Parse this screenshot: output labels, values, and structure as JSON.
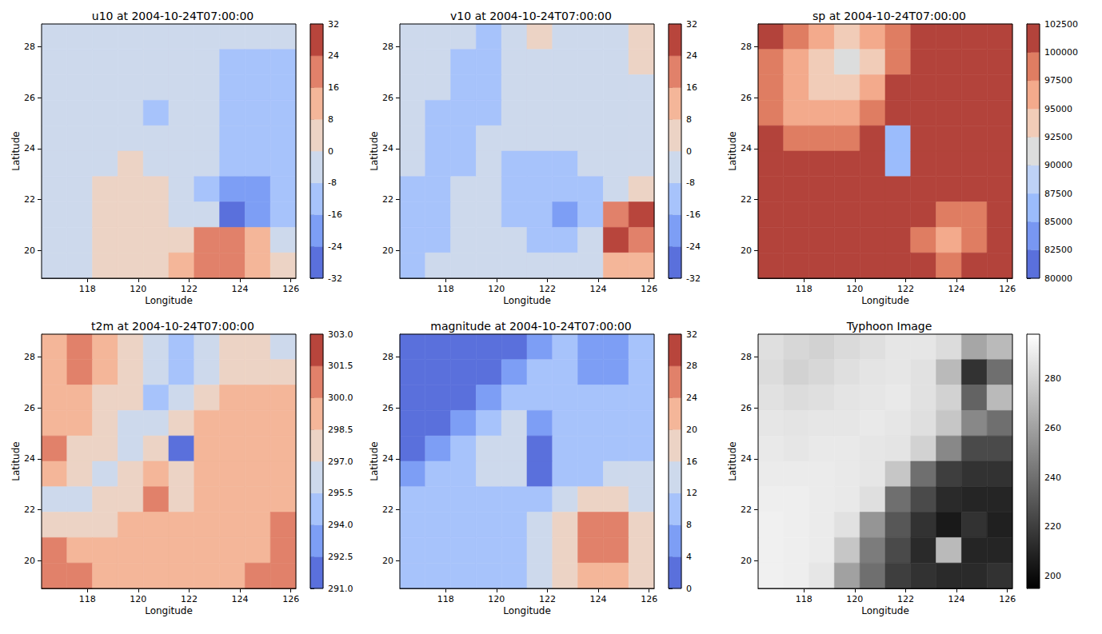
{
  "chart_data": [
    {
      "type": "contour",
      "title": "u10 at 2004-10-24T07:00:00",
      "x_label": "Longitude",
      "y_label": "Latitude",
      "xlim": [
        116.2,
        126.2
      ],
      "xticks": [
        118,
        120,
        122,
        124,
        126
      ],
      "ylim": [
        18.9,
        28.9
      ],
      "yticks": [
        20,
        22,
        24,
        26,
        28
      ],
      "lon": [
        116.7,
        117.7,
        118.7,
        119.7,
        120.7,
        121.7,
        122.7,
        123.7,
        124.7,
        125.7
      ],
      "lat": [
        28.4,
        27.4,
        26.4,
        25.4,
        24.4,
        23.4,
        22.4,
        21.4,
        20.4,
        19.4
      ],
      "values": [
        [
          -3,
          -2,
          -3,
          -4,
          -4,
          -4,
          -5,
          -6,
          -6,
          -5
        ],
        [
          -3,
          -3,
          -4,
          -4,
          -4,
          -5,
          -7,
          -9,
          -10,
          -9
        ],
        [
          -3,
          -4,
          -4,
          -5,
          -6,
          -6,
          -8,
          -10,
          -11,
          -10
        ],
        [
          -4,
          -4,
          -5,
          -6,
          -10,
          -6,
          -7,
          -10,
          -11,
          -10
        ],
        [
          -4,
          -4,
          -5,
          -5,
          -6,
          -7,
          -8,
          -10,
          -11,
          -10
        ],
        [
          -3,
          -3,
          -3,
          2,
          -2,
          -4,
          -8,
          -12,
          -14,
          -11
        ],
        [
          -2,
          -2,
          1,
          3,
          2,
          -3,
          -10,
          -18,
          -22,
          -14
        ],
        [
          -2,
          -1,
          2,
          3,
          3,
          -2,
          -8,
          -25,
          -20,
          -12
        ],
        [
          -2,
          -1,
          2,
          3,
          4,
          6,
          18,
          22,
          12,
          -3
        ],
        [
          -2,
          -1,
          2,
          2,
          3,
          8,
          16,
          20,
          12,
          2
        ]
      ],
      "colorbar": {
        "levels": [
          -32,
          -24,
          -16,
          -8,
          0,
          8,
          16,
          24,
          32
        ],
        "colors": [
          "#5a70dc",
          "#7d9ef5",
          "#a7c3fb",
          "#cdd9ec",
          "#ecd3c5",
          "#f4b699",
          "#e1816a",
          "#b8453c"
        ],
        "ticks": [
          -32,
          -24,
          -16,
          -8,
          0,
          8,
          16,
          24,
          32
        ]
      }
    },
    {
      "type": "contour",
      "title": "v10 at 2004-10-24T07:00:00",
      "x_label": "Longitude",
      "y_label": "Latitude",
      "xlim": [
        116.2,
        126.2
      ],
      "xticks": [
        118,
        120,
        122,
        124,
        126
      ],
      "ylim": [
        18.9,
        28.9
      ],
      "yticks": [
        20,
        22,
        24,
        26,
        28
      ],
      "lon": [
        116.7,
        117.7,
        118.7,
        119.7,
        120.7,
        121.7,
        122.7,
        123.7,
        124.7,
        125.7
      ],
      "lat": [
        28.4,
        27.4,
        26.4,
        25.4,
        24.4,
        23.4,
        22.4,
        21.4,
        20.4,
        19.4
      ],
      "values": [
        [
          -4,
          -5,
          -6,
          -10,
          -6,
          2,
          -4,
          -5,
          -4,
          2
        ],
        [
          -4,
          -5,
          -9,
          -10,
          -5,
          -3,
          -4,
          -4,
          -3,
          1
        ],
        [
          -4,
          -7,
          -10,
          -10,
          -5,
          -4,
          -4,
          -4,
          -4,
          -3
        ],
        [
          -5,
          -9,
          -10,
          -9,
          -6,
          -5,
          -5,
          -5,
          -4,
          -4
        ],
        [
          -6,
          -10,
          -10,
          -7,
          -6,
          -6,
          -5,
          -5,
          -4,
          -4
        ],
        [
          -8,
          -10,
          -9,
          -7,
          -9,
          -10,
          -10,
          -8,
          -4,
          -3
        ],
        [
          -10,
          -10,
          -8,
          -8,
          -10,
          -14,
          -16,
          -12,
          -2,
          6
        ],
        [
          -10,
          -10,
          -7,
          -6,
          -10,
          -13,
          -20,
          -14,
          20,
          26
        ],
        [
          -10,
          -9,
          -6,
          -5,
          -8,
          -10,
          -12,
          -6,
          24,
          22
        ],
        [
          -10,
          -8,
          -5,
          -4,
          -6,
          -8,
          -8,
          -3,
          12,
          10
        ]
      ],
      "colorbar": {
        "levels": [
          -32,
          -24,
          -16,
          -8,
          0,
          8,
          16,
          24,
          32
        ],
        "colors": [
          "#5a70dc",
          "#7d9ef5",
          "#a7c3fb",
          "#cdd9ec",
          "#ecd3c5",
          "#f4b699",
          "#e1816a",
          "#b8453c"
        ],
        "ticks": [
          -32,
          -24,
          -16,
          -8,
          0,
          8,
          16,
          24,
          32
        ]
      }
    },
    {
      "type": "contour",
      "title": "sp at 2004-10-24T07:00:00",
      "x_label": "Longitude",
      "y_label": "Latitude",
      "xlim": [
        116.2,
        126.2
      ],
      "xticks": [
        118,
        120,
        122,
        124,
        126
      ],
      "ylim": [
        18.9,
        28.9
      ],
      "yticks": [
        20,
        22,
        24,
        26,
        28
      ],
      "lon": [
        116.7,
        117.7,
        118.7,
        119.7,
        120.7,
        121.7,
        122.7,
        123.7,
        124.7,
        125.7
      ],
      "lat": [
        28.4,
        27.4,
        26.4,
        25.4,
        24.4,
        23.4,
        22.4,
        21.4,
        20.4,
        19.4
      ],
      "values": [
        [
          101000,
          99000,
          96000,
          93000,
          96000,
          99000,
          101000,
          101000,
          101000,
          101000
        ],
        [
          99000,
          96000,
          94000,
          91000,
          94000,
          99500,
          101000,
          101000,
          101000,
          101000
        ],
        [
          98000,
          95000,
          93000,
          94000,
          97000,
          101000,
          101000,
          101000,
          101000,
          101000
        ],
        [
          99000,
          96000,
          95000,
          96000,
          99000,
          101000,
          101000,
          101000,
          101000,
          101000
        ],
        [
          100500,
          99000,
          98500,
          99500,
          101000,
          86000,
          101000,
          101000,
          101000,
          101000
        ],
        [
          101000,
          101000,
          101000,
          101000,
          101000,
          85000,
          101000,
          101000,
          101000,
          101000
        ],
        [
          101000,
          101000,
          101000,
          101000,
          101000,
          101000,
          101000,
          101000,
          101000,
          101000
        ],
        [
          101000,
          101000,
          101000,
          101000,
          101000,
          101000,
          101000,
          98500,
          99000,
          101000
        ],
        [
          101000,
          101000,
          101000,
          101000,
          101000,
          101000,
          99000,
          96500,
          98500,
          101000
        ],
        [
          101000,
          101000,
          101000,
          101000,
          101000,
          101000,
          101000,
          99000,
          101000,
          101000
        ]
      ],
      "colorbar": {
        "levels": [
          80000,
          82500,
          85000,
          87500,
          90000,
          92500,
          95000,
          97500,
          100000,
          102500
        ],
        "colors": [
          "#5a70dc",
          "#7897f2",
          "#9bbcfc",
          "#bed2f6",
          "#dcdddd",
          "#f1ccb8",
          "#f3aa8c",
          "#df7d62",
          "#b3433b"
        ],
        "ticks": [
          80000,
          82500,
          85000,
          87500,
          90000,
          92500,
          95000,
          97500,
          100000,
          102500
        ]
      }
    },
    {
      "type": "contour",
      "title": "t2m at 2004-10-24T07:00:00",
      "x_label": "Longitude",
      "y_label": "Latitude",
      "xlim": [
        116.2,
        126.2
      ],
      "xticks": [
        118,
        120,
        122,
        124,
        126
      ],
      "ylim": [
        18.9,
        28.9
      ],
      "yticks": [
        20,
        22,
        24,
        26,
        28
      ],
      "lon": [
        116.7,
        117.7,
        118.7,
        119.7,
        120.7,
        121.7,
        122.7,
        123.7,
        124.7,
        125.7
      ],
      "lat": [
        28.4,
        27.4,
        26.4,
        25.4,
        24.4,
        23.4,
        22.4,
        21.4,
        20.4,
        19.4
      ],
      "values": [
        [
          299,
          300.5,
          298.6,
          297.5,
          296,
          295,
          296,
          297.5,
          298,
          296
        ],
        [
          299,
          301,
          299,
          297.5,
          296.5,
          294.8,
          296,
          297.5,
          298,
          297.5
        ],
        [
          299.5,
          299,
          298,
          297,
          295,
          296.5,
          297.5,
          298.8,
          299,
          299
        ],
        [
          299,
          299,
          297.5,
          296,
          295.5,
          297.5,
          298.8,
          299,
          299,
          299
        ],
        [
          300.5,
          298,
          297,
          296,
          297.5,
          292,
          298.8,
          299,
          299,
          299
        ],
        [
          298.8,
          297.5,
          296,
          297.5,
          299,
          297,
          299,
          299,
          299,
          299
        ],
        [
          296.8,
          296,
          297.5,
          298,
          301,
          298,
          299,
          299,
          299,
          299.5
        ],
        [
          297.5,
          297.8,
          298,
          298.8,
          299,
          299,
          299,
          299,
          299,
          300.5
        ],
        [
          300.5,
          298.5,
          298.8,
          299,
          299,
          299,
          299,
          299,
          299,
          300.6
        ],
        [
          300.6,
          300.6,
          299,
          299,
          299,
          299,
          299,
          299,
          300.6,
          300.6
        ]
      ],
      "colorbar": {
        "levels": [
          291,
          292.5,
          294,
          295.5,
          297,
          298.5,
          300,
          301.5,
          303
        ],
        "colors": [
          "#5a70dc",
          "#7d9ef5",
          "#a7c3fb",
          "#cdd9ec",
          "#ecd3c5",
          "#f4b699",
          "#e1816a",
          "#b8453c"
        ],
        "ticks": [
          {
            "value": 291,
            "label": "291.0"
          },
          {
            "value": 292.5,
            "label": "292.5"
          },
          {
            "value": 294,
            "label": "294.0"
          },
          {
            "value": 295.5,
            "label": "295.5"
          },
          {
            "value": 297,
            "label": "297.0"
          },
          {
            "value": 298.5,
            "label": "298.5"
          },
          {
            "value": 300,
            "label": "300.0"
          },
          {
            "value": 301.5,
            "label": "301.5"
          },
          {
            "value": 303,
            "label": "303.0"
          }
        ]
      }
    },
    {
      "type": "contour",
      "title": "magnitude at 2004-10-24T07:00:00",
      "x_label": "Longitude",
      "y_label": "Latitude",
      "xlim": [
        116.2,
        126.2
      ],
      "xticks": [
        118,
        120,
        122,
        124,
        126
      ],
      "ylim": [
        18.9,
        28.9
      ],
      "yticks": [
        20,
        22,
        24,
        26,
        28
      ],
      "lon": [
        116.7,
        117.7,
        118.7,
        119.7,
        120.7,
        121.7,
        122.7,
        123.7,
        124.7,
        125.7
      ],
      "lat": [
        28.4,
        27.4,
        26.4,
        25.4,
        24.4,
        23.4,
        22.4,
        21.4,
        20.4,
        19.4
      ],
      "values": [
        [
          2,
          2,
          2,
          2,
          3,
          6,
          9,
          6,
          6,
          9
        ],
        [
          2,
          2,
          2,
          3,
          6,
          9,
          10,
          6,
          7,
          10
        ],
        [
          2,
          2,
          3,
          6,
          9,
          10,
          10,
          10,
          10,
          10
        ],
        [
          2,
          3,
          6,
          10,
          13,
          6,
          10,
          10,
          10,
          10
        ],
        [
          3,
          6,
          10,
          13,
          14,
          2,
          9,
          10,
          10,
          11
        ],
        [
          6,
          9,
          11,
          13,
          12,
          3,
          10,
          11,
          12,
          12
        ],
        [
          9,
          10,
          10,
          10,
          10,
          10,
          13,
          17,
          18,
          15
        ],
        [
          10,
          10,
          10,
          10,
          10,
          12,
          18,
          26,
          26,
          18
        ],
        [
          10,
          10,
          10,
          10,
          10,
          13,
          18,
          27,
          24,
          17
        ],
        [
          10,
          10,
          10,
          10,
          10,
          13,
          17,
          22,
          22,
          17
        ]
      ],
      "colorbar": {
        "levels": [
          0,
          4,
          8,
          12,
          16,
          20,
          24,
          28,
          32
        ],
        "colors": [
          "#5a70dc",
          "#7d9ef5",
          "#a7c3fb",
          "#cdd9ec",
          "#ecd3c5",
          "#f4b699",
          "#e1816a",
          "#b8453c"
        ],
        "ticks": [
          0,
          4,
          8,
          12,
          16,
          20,
          24,
          28,
          32
        ]
      }
    },
    {
      "type": "image",
      "title": "Typhoon Image",
      "x_label": "Longitude",
      "y_label": "Latitude",
      "xlim": [
        116.2,
        126.2
      ],
      "xticks": [
        118,
        120,
        122,
        124,
        126
      ],
      "ylim": [
        18.9,
        28.9
      ],
      "yticks": [
        20,
        22,
        24,
        26,
        28
      ],
      "lon": [
        116.7,
        117.7,
        118.7,
        119.7,
        120.7,
        121.7,
        122.7,
        123.7,
        124.7,
        125.7
      ],
      "lat": [
        28.4,
        27.4,
        26.4,
        25.4,
        24.4,
        23.4,
        22.4,
        21.4,
        20.4,
        19.4
      ],
      "values": [
        [
          285,
          282,
          280,
          283,
          285,
          288,
          288,
          284,
          262,
          270
        ],
        [
          284,
          280,
          282,
          285,
          287,
          288,
          286,
          270,
          215,
          240
        ],
        [
          286,
          284,
          285,
          287,
          288,
          289,
          286,
          280,
          235,
          270
        ],
        [
          288,
          287,
          288,
          288,
          289,
          288,
          285,
          275,
          250,
          240
        ],
        [
          289,
          288,
          289,
          289,
          288,
          287,
          280,
          250,
          225,
          225
        ],
        [
          290,
          290,
          290,
          289,
          288,
          275,
          240,
          220,
          215,
          215
        ],
        [
          291,
          291,
          290,
          289,
          285,
          240,
          225,
          212,
          210,
          210
        ],
        [
          292,
          291,
          290,
          286,
          255,
          230,
          215,
          205,
          215,
          208
        ],
        [
          292,
          291,
          290,
          275,
          245,
          225,
          212,
          270,
          210,
          210
        ],
        [
          292,
          291,
          288,
          260,
          240,
          220,
          215,
          212,
          212,
          215
        ]
      ],
      "colorbar": {
        "range": [
          195,
          298
        ],
        "colors": [
          "#000000",
          "#ffffff"
        ],
        "ticks": [
          200,
          220,
          240,
          260,
          280
        ]
      }
    }
  ]
}
